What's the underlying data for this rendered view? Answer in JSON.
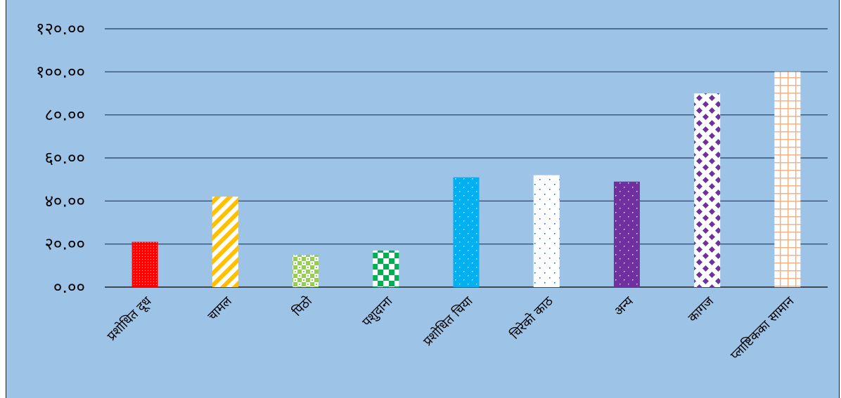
{
  "chart_data": {
    "type": "bar",
    "title": "",
    "xlabel": "",
    "ylabel": "",
    "ylim": [
      0,
      120
    ],
    "y_ticks": [
      "०.००",
      "२०.००",
      "४०.००",
      "६०.००",
      "८०.००",
      "१००.००",
      "१२०.००"
    ],
    "categories": [
      "प्रशोधित दूध",
      "चामल",
      "पिठो",
      "पशुदाना",
      "प्रशोधित चिया",
      "चिरेको काठ",
      "अन्य",
      "कागज",
      "प्लाष्टिकका सामान"
    ],
    "values": [
      21,
      42,
      15,
      17,
      51,
      52,
      49,
      90,
      100
    ],
    "grid": true,
    "legend": "none",
    "colors": {
      "background": "#9dc3e6",
      "gridline": "#1f3b63",
      "bars": [
        "#ff0000",
        "#ffc000",
        "#92d050",
        "#00b050",
        "#00b0f0",
        "#ffffff",
        "#7030a0",
        "#7030a0",
        "#ffffff"
      ],
      "bar_accents": [
        "#ffffff",
        "#ffffff",
        "#ffffff",
        "#ffffff",
        "#ffffff",
        "#1f6fc5",
        "#ffffff",
        "#ffffff",
        "#f4b183"
      ]
    }
  }
}
